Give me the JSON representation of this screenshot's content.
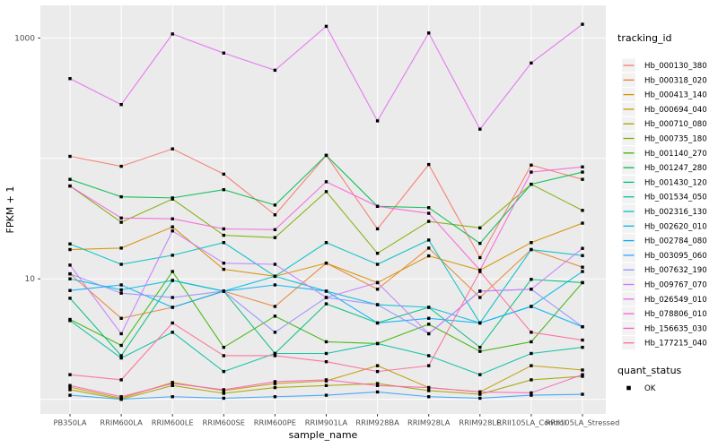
{
  "figure": {
    "background": "#FFFFFF",
    "panel_background": "#EBEBEB",
    "grid_color": "#FFFFFF",
    "axis_text_color": "#4D4D4D",
    "title_text_color": "#000000",
    "point_color": "#000000",
    "legend_key_background": "#F2F2F2"
  },
  "chart_data": {
    "type": "line",
    "title": "",
    "xlabel": "sample_name",
    "ylabel": "FPKM + 1",
    "yscale": "log10",
    "ylim": [
      0.75,
      1870
    ],
    "grid": true,
    "gridline_values": [
      1,
      10,
      100,
      1000
    ],
    "ytick_values": [
      10,
      1000
    ],
    "ytick_labels": [
      "10",
      "1000"
    ],
    "legend_position": "right",
    "legend_title": "tracking_id",
    "legend2_title": "quant_status",
    "legend2_items": [
      "OK"
    ],
    "categories": [
      "PB350LA",
      "RRIM600LA",
      "RRIM600LE",
      "RRIM600SE",
      "RRIM600PE",
      "RRIM901LA",
      "RRIM928BA",
      "RRIM928LA",
      "RRIM928LE",
      "RRII105LA_Control",
      "RRII105LA_Stressed"
    ],
    "series": [
      {
        "name": "Hb_000130_380",
        "color": "#F8766D",
        "values": [
          104,
          86,
          120,
          74,
          34,
          106,
          26,
          89,
          15,
          88,
          67
        ]
      },
      {
        "name": "Hb_000318_020",
        "color": "#EA8331",
        "values": [
          11,
          4.7,
          5.8,
          7.9,
          5.9,
          13.5,
          8.2,
          18,
          7,
          17.5,
          12.5
        ]
      },
      {
        "name": "Hb_000413_140",
        "color": "#D89000",
        "values": [
          17.5,
          18,
          27,
          12,
          10.5,
          13.5,
          9.3,
          15.5,
          11.8,
          20,
          29
        ]
      },
      {
        "name": "Hb_000694_040",
        "color": "#C09B00",
        "values": [
          1.26,
          1.02,
          1.38,
          1.18,
          1.35,
          1.42,
          1.9,
          1.25,
          1.15,
          1.9,
          1.75
        ]
      },
      {
        "name": "Hb_000710_080",
        "color": "#A3A500",
        "values": [
          1.2,
          1.0,
          1.3,
          1.12,
          1.25,
          1.3,
          1.35,
          1.18,
          1.1,
          1.45,
          1.55
        ]
      },
      {
        "name": "Hb_000735_180",
        "color": "#7CAE00",
        "values": [
          59,
          29.5,
          46,
          23,
          22,
          53,
          16.3,
          30,
          26.5,
          61,
          37
        ]
      },
      {
        "name": "Hb_001140_270",
        "color": "#39B600",
        "values": [
          4.6,
          2.8,
          11.5,
          2.7,
          4.9,
          3.0,
          2.9,
          4.2,
          2.5,
          3.0,
          9.3
        ]
      },
      {
        "name": "Hb_001247_280",
        "color": "#00BB4E",
        "values": [
          67,
          48,
          47,
          55,
          41,
          106,
          40,
          39,
          19.7,
          61,
          77
        ]
      },
      {
        "name": "Hb_001430_120",
        "color": "#00BF7D",
        "values": [
          6.9,
          2.3,
          9.7,
          7.9,
          2.4,
          6.2,
          4.3,
          5.8,
          2.7,
          9.9,
          9.3
        ]
      },
      {
        "name": "Hb_001534_050",
        "color": "#00C1A3",
        "values": [
          4.5,
          2.2,
          3.6,
          1.7,
          2.4,
          2.4,
          2.9,
          2.3,
          1.6,
          2.4,
          2.7
        ]
      },
      {
        "name": "Hb_002316_130",
        "color": "#00BFC4",
        "values": [
          19.5,
          13.2,
          15.7,
          20,
          10.5,
          20,
          13.2,
          21,
          4.3,
          17.5,
          15.6
        ]
      },
      {
        "name": "Hb_002620_010",
        "color": "#00BAE0",
        "values": [
          10,
          8.1,
          9.7,
          7.9,
          10.5,
          7.9,
          6.1,
          5.8,
          4.3,
          5.9,
          11.5
        ]
      },
      {
        "name": "Hb_002784_080",
        "color": "#00B0F6",
        "values": [
          8,
          8.9,
          5.8,
          7.9,
          8.9,
          7.9,
          4.3,
          4.7,
          4.3,
          5.9,
          4.0
        ]
      },
      {
        "name": "Hb_003095_060",
        "color": "#35A2FF",
        "values": [
          1.08,
          1.0,
          1.05,
          1.02,
          1.05,
          1.08,
          1.15,
          1.05,
          1.02,
          1.08,
          1.1
        ]
      },
      {
        "name": "Hb_007632_190",
        "color": "#9590FF",
        "values": [
          11,
          7.6,
          7,
          7.9,
          3.6,
          7.0,
          6.1,
          3.5,
          7.9,
          8.2,
          4.0
        ]
      },
      {
        "name": "Hb_009767_070",
        "color": "#C77CFF",
        "values": [
          13,
          3.5,
          25,
          13.5,
          13.2,
          7,
          9.3,
          3.5,
          7.9,
          8.2,
          17.9
        ]
      },
      {
        "name": "Hb_026549_010",
        "color": "#E76BF3",
        "values": [
          460,
          280,
          1080,
          750,
          540,
          1250,
          205,
          1100,
          175,
          620,
          1300
        ]
      },
      {
        "name": "Hb_078806_010",
        "color": "#FA62DB",
        "values": [
          59,
          32,
          31.5,
          26,
          25.6,
          64,
          40,
          35,
          11.8,
          77,
          85
        ]
      },
      {
        "name": "Hb_156635_030",
        "color": "#FF62BC",
        "values": [
          1.3,
          1.05,
          1.35,
          1.2,
          1.4,
          1.45,
          1.3,
          1.25,
          1.15,
          1.13,
          1.6
        ]
      },
      {
        "name": "Hb_177215_040",
        "color": "#FF6A98",
        "values": [
          1.6,
          1.45,
          4.3,
          2.3,
          2.3,
          2.05,
          1.7,
          1.9,
          11.5,
          3.6,
          3.1
        ]
      }
    ]
  }
}
